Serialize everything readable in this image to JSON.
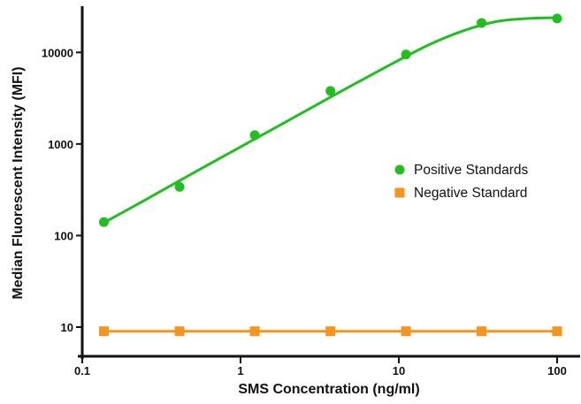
{
  "chart_data": {
    "type": "line",
    "xlabel": "SMS Concentration (ng/ml)",
    "ylabel": "Median Fluorescent Intensity (MFI)",
    "x_scale": "log",
    "y_scale": "log",
    "xlim": [
      0.1,
      100
    ],
    "ylim": [
      4.8,
      32000
    ],
    "x_ticks": [
      {
        "value": 0.1,
        "label": "0.1"
      },
      {
        "value": 1,
        "label": "1"
      },
      {
        "value": 10,
        "label": "10"
      },
      {
        "value": 100,
        "label": "100"
      }
    ],
    "y_ticks": [
      {
        "value": 10,
        "label": "10"
      },
      {
        "value": 100,
        "label": "100"
      },
      {
        "value": 1000,
        "label": "1000"
      },
      {
        "value": 10000,
        "label": "10000"
      }
    ],
    "grid": false,
    "legend_position": "right-middle",
    "series": [
      {
        "name": "Positive Standards",
        "marker": "circle",
        "color": "#1fbf1f",
        "points": [
          {
            "x": 0.137,
            "y": 140
          },
          {
            "x": 0.412,
            "y": 340
          },
          {
            "x": 1.23,
            "y": 1250
          },
          {
            "x": 3.7,
            "y": 3800
          },
          {
            "x": 11.1,
            "y": 9500
          },
          {
            "x": 33.3,
            "y": 21000
          },
          {
            "x": 100,
            "y": 23500
          }
        ],
        "fit_curve": [
          {
            "x": 0.137,
            "y": 138
          },
          {
            "x": 0.25,
            "y": 245
          },
          {
            "x": 0.5,
            "y": 480
          },
          {
            "x": 1,
            "y": 930
          },
          {
            "x": 2,
            "y": 1800
          },
          {
            "x": 4,
            "y": 3500
          },
          {
            "x": 8,
            "y": 6700
          },
          {
            "x": 15,
            "y": 11800
          },
          {
            "x": 25,
            "y": 17000
          },
          {
            "x": 40,
            "y": 21500
          },
          {
            "x": 60,
            "y": 23300
          },
          {
            "x": 100,
            "y": 24000
          }
        ]
      },
      {
        "name": "Negative Standard",
        "marker": "square",
        "color": "#f7941d",
        "points": [
          {
            "x": 0.137,
            "y": 9
          },
          {
            "x": 0.412,
            "y": 9
          },
          {
            "x": 1.23,
            "y": 9
          },
          {
            "x": 3.7,
            "y": 9
          },
          {
            "x": 11.1,
            "y": 9
          },
          {
            "x": 33.3,
            "y": 9
          },
          {
            "x": 100,
            "y": 9
          }
        ]
      }
    ]
  }
}
